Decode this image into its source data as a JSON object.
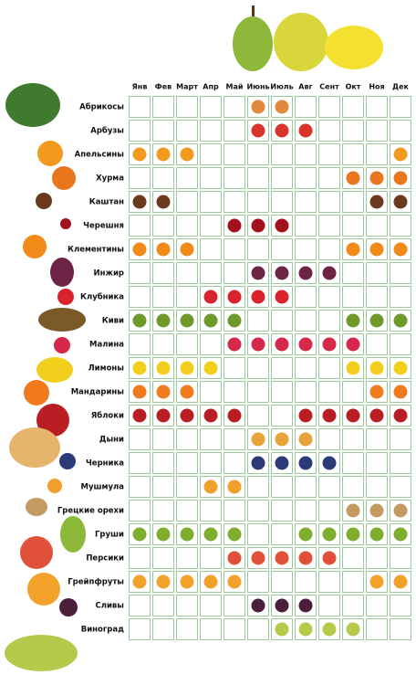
{
  "months": [
    "Янв",
    "Фев",
    "Март",
    "Апр",
    "Май",
    "Июнь",
    "Июль",
    "Авг",
    "Сент",
    "Окт",
    "Ноя",
    "Дек"
  ],
  "rows": [
    {
      "name": "Абрикосы",
      "color": "#e08a3c",
      "in_season": [
        false,
        false,
        false,
        false,
        false,
        true,
        true,
        false,
        false,
        false,
        false,
        false
      ]
    },
    {
      "name": "Арбузы",
      "color": "#d9342b",
      "in_season": [
        false,
        false,
        false,
        false,
        false,
        true,
        true,
        true,
        false,
        false,
        false,
        false
      ]
    },
    {
      "name": "Апельсины",
      "color": "#f39a1e",
      "in_season": [
        true,
        true,
        true,
        false,
        false,
        false,
        false,
        false,
        false,
        false,
        false,
        true
      ]
    },
    {
      "name": "Хурма",
      "color": "#e8761c",
      "in_season": [
        false,
        false,
        false,
        false,
        false,
        false,
        false,
        false,
        false,
        true,
        true,
        true
      ]
    },
    {
      "name": "Каштан",
      "color": "#6b3a1e",
      "in_season": [
        true,
        true,
        false,
        false,
        false,
        false,
        false,
        false,
        false,
        false,
        true,
        true
      ]
    },
    {
      "name": "Черешня",
      "color": "#a3121c",
      "in_season": [
        false,
        false,
        false,
        false,
        true,
        true,
        true,
        false,
        false,
        false,
        false,
        false
      ]
    },
    {
      "name": "Клементины",
      "color": "#f28a1a",
      "in_season": [
        true,
        true,
        true,
        false,
        false,
        false,
        false,
        false,
        false,
        true,
        true,
        true
      ]
    },
    {
      "name": "Инжир",
      "color": "#6e2444",
      "in_season": [
        false,
        false,
        false,
        false,
        false,
        true,
        true,
        true,
        true,
        false,
        false,
        false
      ]
    },
    {
      "name": "Клубника",
      "color": "#d8232e",
      "in_season": [
        false,
        false,
        false,
        true,
        true,
        true,
        true,
        false,
        false,
        false,
        false,
        false
      ]
    },
    {
      "name": "Киви",
      "color": "#6f9a2a",
      "in_season": [
        true,
        true,
        true,
        true,
        true,
        false,
        false,
        false,
        false,
        true,
        true,
        true
      ]
    },
    {
      "name": "Малина",
      "color": "#d6284a",
      "in_season": [
        false,
        false,
        false,
        false,
        true,
        true,
        true,
        true,
        true,
        true,
        false,
        false
      ]
    },
    {
      "name": "Лимоны",
      "color": "#f2cf1c",
      "in_season": [
        true,
        true,
        true,
        true,
        false,
        false,
        false,
        false,
        false,
        true,
        true,
        true
      ]
    },
    {
      "name": "Мандарины",
      "color": "#f07a1c",
      "in_season": [
        true,
        true,
        true,
        false,
        false,
        false,
        false,
        false,
        false,
        false,
        true,
        true
      ]
    },
    {
      "name": "Яблоки",
      "color": "#b81e24",
      "in_season": [
        true,
        true,
        true,
        true,
        true,
        false,
        false,
        true,
        true,
        true,
        true,
        true
      ]
    },
    {
      "name": "Дыни",
      "color": "#e6a43a",
      "in_season": [
        false,
        false,
        false,
        false,
        false,
        true,
        true,
        true,
        false,
        false,
        false,
        false
      ]
    },
    {
      "name": "Черника",
      "color": "#2c3b78",
      "in_season": [
        false,
        false,
        false,
        false,
        false,
        true,
        true,
        true,
        true,
        false,
        false,
        false
      ]
    },
    {
      "name": "Мушмула",
      "color": "#f0a02a",
      "in_season": [
        false,
        false,
        false,
        true,
        true,
        false,
        false,
        false,
        false,
        false,
        false,
        false
      ]
    },
    {
      "name": "Грецкие орехи",
      "color": "#c29a62",
      "in_season": [
        false,
        false,
        false,
        false,
        false,
        false,
        false,
        false,
        false,
        true,
        true,
        true
      ]
    },
    {
      "name": "Груши",
      "color": "#7fae2e",
      "in_season": [
        true,
        true,
        true,
        true,
        true,
        false,
        false,
        true,
        true,
        true,
        true,
        true
      ]
    },
    {
      "name": "Персики",
      "color": "#e0503a",
      "in_season": [
        false,
        false,
        false,
        false,
        true,
        true,
        true,
        true,
        true,
        false,
        false,
        false
      ]
    },
    {
      "name": "Грейпфруты",
      "color": "#f2a22a",
      "in_season": [
        true,
        true,
        true,
        true,
        true,
        false,
        false,
        false,
        false,
        false,
        true,
        true
      ]
    },
    {
      "name": "Сливы",
      "color": "#4a1f3c",
      "in_season": [
        false,
        false,
        false,
        false,
        false,
        true,
        true,
        true,
        false,
        false,
        false,
        false
      ]
    },
    {
      "name": "Виноград",
      "color": "#b5c94a",
      "in_season": [
        false,
        false,
        false,
        false,
        false,
        false,
        true,
        true,
        true,
        true,
        false,
        false
      ]
    }
  ]
}
